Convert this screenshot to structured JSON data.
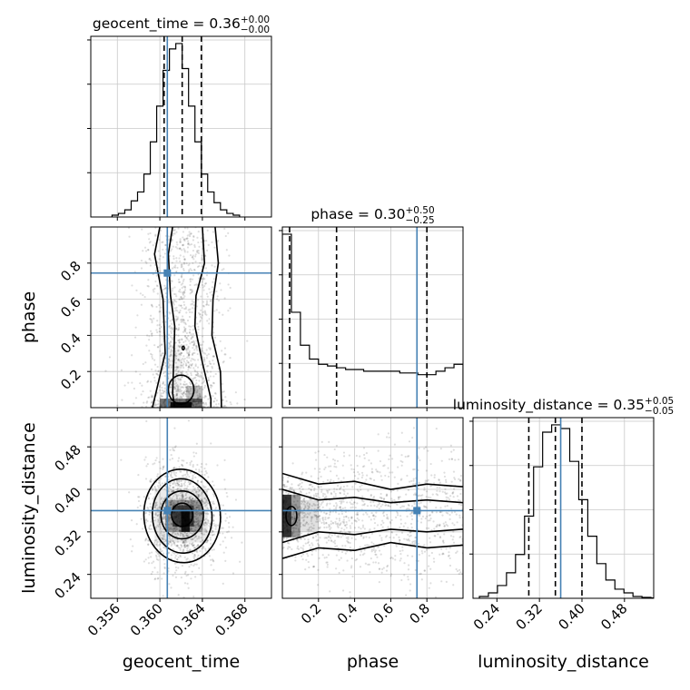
{
  "chart_data": {
    "type": "corner",
    "parameters": [
      {
        "name": "geocent_time",
        "title_main": "geocent_time = 0.36",
        "title_sup": "+0.00",
        "title_sub": "−0.00",
        "range": [
          0.3535,
          0.3705
        ],
        "ticks": [
          "0.356",
          "0.360",
          "0.364",
          "0.368"
        ],
        "tick_values": [
          0.356,
          0.36,
          0.364,
          0.368
        ],
        "quantiles": [
          0.3604,
          0.3621,
          0.3639
        ],
        "truth": 0.3607,
        "hist_x0": 0.3555,
        "hist_dx": 0.0006,
        "hist": [
          0.01,
          0.02,
          0.04,
          0.09,
          0.14,
          0.24,
          0.42,
          0.62,
          0.82,
          0.94,
          0.97,
          0.83,
          0.62,
          0.42,
          0.24,
          0.14,
          0.08,
          0.04,
          0.02,
          0.01
        ]
      },
      {
        "name": "phase",
        "title_main": "phase = 0.30",
        "title_sup": "+0.50",
        "title_sub": "−0.25",
        "range": [
          0.0,
          1.0
        ],
        "ticks": [
          "0.2",
          "0.4",
          "0.6",
          "0.8"
        ],
        "tick_values": [
          0.2,
          0.4,
          0.6,
          0.8
        ],
        "quantiles": [
          0.04,
          0.3,
          0.8
        ],
        "truth": 0.745,
        "hist_x0": 0.0,
        "hist_dx": 0.05,
        "hist": [
          1.0,
          0.55,
          0.36,
          0.28,
          0.25,
          0.24,
          0.23,
          0.22,
          0.22,
          0.21,
          0.21,
          0.21,
          0.21,
          0.2,
          0.2,
          0.19,
          0.19,
          0.21,
          0.23,
          0.25
        ]
      },
      {
        "name": "luminosity_distance",
        "title_main": "luminosity_distance = 0.35",
        "title_sup": "+0.05",
        "title_sub": "−0.05",
        "range": [
          0.195,
          0.535
        ],
        "ticks": [
          "0.24",
          "0.32",
          "0.40",
          "0.48"
        ],
        "tick_values": [
          0.24,
          0.32,
          0.4,
          0.48
        ],
        "quantiles": [
          0.3,
          0.35,
          0.4
        ],
        "truth": 0.36,
        "hist_x0": 0.207,
        "hist_dx": 0.017,
        "hist": [
          0.01,
          0.03,
          0.07,
          0.14,
          0.24,
          0.45,
          0.72,
          0.91,
          0.95,
          0.93,
          0.75,
          0.54,
          0.34,
          0.19,
          0.1,
          0.05,
          0.03,
          0.01,
          0.005,
          0.002
        ]
      }
    ],
    "truth_color": "#4682b4",
    "grid": true
  }
}
